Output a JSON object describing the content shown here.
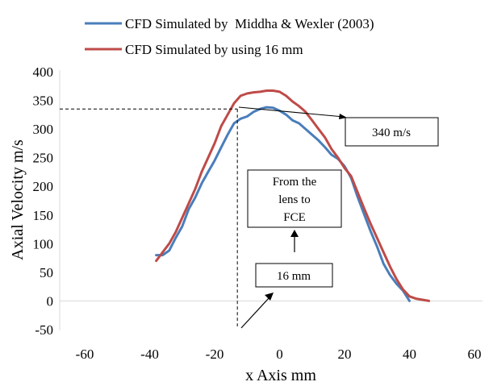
{
  "chart_data": {
    "type": "line",
    "xlabel": "x Axis mm",
    "ylabel": "Axial Velocity m/s",
    "xlim": [
      -60,
      60
    ],
    "ylim": [
      -50,
      400
    ],
    "xticks": [
      -60,
      -40,
      -20,
      0,
      20,
      40,
      60
    ],
    "yticks": [
      -50,
      0,
      50,
      100,
      150,
      200,
      250,
      300,
      350,
      400
    ],
    "grid": false,
    "legend_position": "top",
    "series": [
      {
        "name": "CFD Simulated by  Middha & Wexler (2003)",
        "color": "#4a7ebb",
        "x": [
          -38,
          -36,
          -34,
          -32,
          -30,
          -28,
          -26,
          -24,
          -22,
          -20,
          -18,
          -16,
          -14,
          -12,
          -10,
          -8,
          -6,
          -4,
          -2,
          0,
          2,
          4,
          6,
          8,
          10,
          12,
          14,
          16,
          18,
          20,
          22,
          24,
          26,
          28,
          30,
          32,
          34,
          36,
          38,
          40
        ],
        "y": [
          80,
          80,
          88,
          110,
          130,
          160,
          180,
          205,
          225,
          245,
          268,
          290,
          310,
          318,
          322,
          330,
          335,
          338,
          337,
          332,
          325,
          315,
          310,
          300,
          290,
          280,
          268,
          255,
          248,
          235,
          215,
          182,
          152,
          122,
          95,
          65,
          45,
          30,
          18,
          0
        ]
      },
      {
        "name": "CFD Simulated by using 16 mm",
        "color": "#be4b48",
        "x": [
          -38,
          -36,
          -34,
          -32,
          -30,
          -28,
          -26,
          -24,
          -22,
          -20,
          -18,
          -16,
          -14,
          -12,
          -10,
          -8,
          -6,
          -4,
          -2,
          0,
          2,
          4,
          6,
          8,
          10,
          12,
          14,
          16,
          18,
          20,
          22,
          24,
          26,
          28,
          30,
          32,
          34,
          36,
          38,
          40,
          42,
          44,
          46
        ],
        "y": [
          70,
          85,
          100,
          120,
          145,
          170,
          195,
          225,
          250,
          275,
          305,
          325,
          345,
          358,
          362,
          364,
          365,
          367,
          367,
          365,
          358,
          348,
          340,
          330,
          315,
          300,
          285,
          265,
          250,
          232,
          218,
          190,
          162,
          135,
          110,
          85,
          60,
          38,
          20,
          8,
          4,
          2,
          0
        ]
      }
    ],
    "annotations": {
      "velocity_label": "340 m/s",
      "velocity_ref_value": 335,
      "location_x": -13,
      "box_lens_lines": [
        "From the",
        "lens to",
        "FCE"
      ],
      "distance_label": "16 mm"
    }
  }
}
